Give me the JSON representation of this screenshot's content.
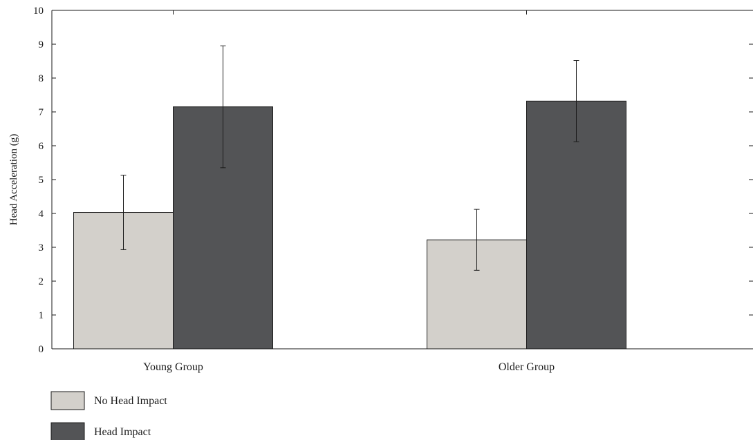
{
  "chart_data": {
    "type": "bar",
    "categories": [
      "Young Group",
      "Older Group"
    ],
    "series": [
      {
        "name": "No Head Impact",
        "values": [
          4.03,
          3.22
        ],
        "error": [
          1.1,
          0.9
        ],
        "color": "#d3d0cb"
      },
      {
        "name": "Head Impact",
        "values": [
          7.15,
          7.32
        ],
        "error": [
          1.8,
          1.2
        ],
        "color": "#535456"
      }
    ],
    "xlabel": "",
    "ylabel": "Head Acceleration (g)",
    "ylim": [
      0,
      10
    ],
    "yticks": [
      0,
      1,
      2,
      3,
      4,
      5,
      6,
      7,
      8,
      9,
      10
    ],
    "grid": false,
    "legend_position": "bottom-left"
  }
}
